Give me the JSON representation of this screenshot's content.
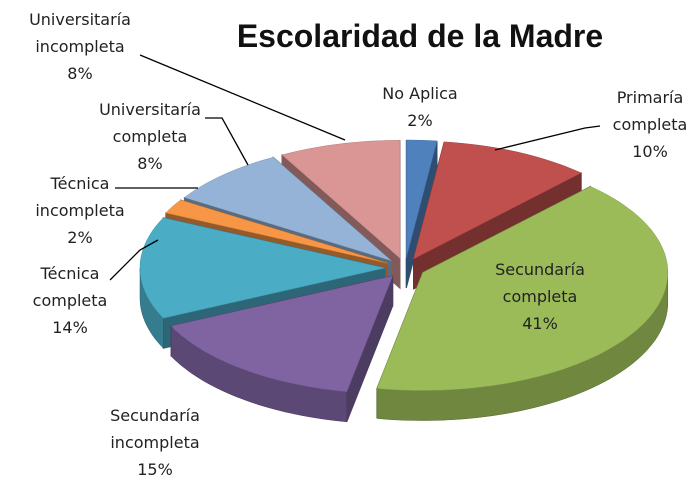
{
  "chart_data": {
    "type": "pie",
    "title": "Escolaridad de la Madre",
    "categories": [
      "No Aplica",
      "Primaría completa",
      "Secundaría completa",
      "Secundaría incompleta",
      "Técnica completa",
      "Técnica incompleta",
      "Universitaría completa",
      "Universitaría incompleta"
    ],
    "values": [
      2,
      10,
      41,
      15,
      14,
      2,
      8,
      8
    ],
    "value_labels": [
      "2%",
      "10%",
      "41%",
      "15%",
      "14%",
      "2%",
      "8%",
      "8%"
    ],
    "colors": [
      "#4F81BD",
      "#C0504D",
      "#9BBB59",
      "#8064A2",
      "#4BACC6",
      "#F79646",
      "#95B3D7",
      "#D99694"
    ]
  }
}
